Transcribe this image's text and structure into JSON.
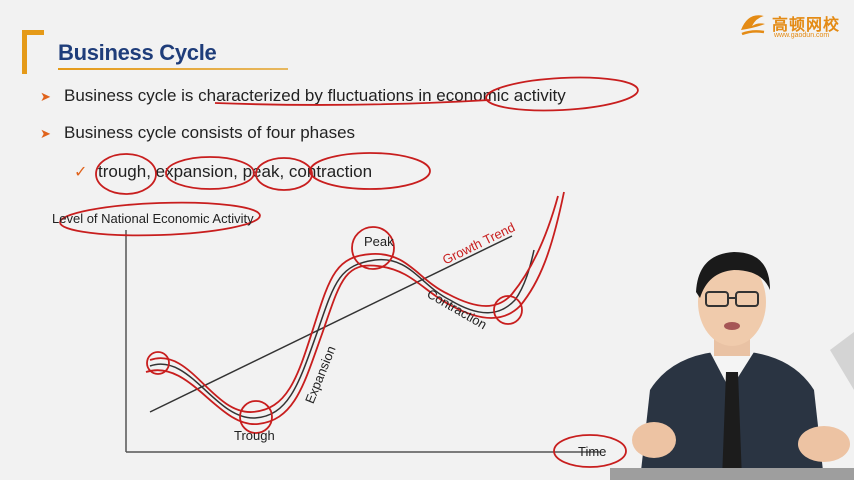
{
  "slide": {
    "title": "Business Cycle",
    "logo": {
      "text": "高顿网校",
      "url": "www.gaodun.com"
    },
    "bullets": [
      "Business cycle is characterized by fluctuations in economic activity",
      "Business cycle consists of four phases"
    ],
    "phases_line": "trough, expansion, peak, contraction"
  },
  "diagram": {
    "y_axis_label": "Level of National Economic Activity",
    "x_axis_label": "Time",
    "labels": {
      "peak": "Peak",
      "trough": "Trough",
      "expansion": "Expansion",
      "contraction": "Contraction",
      "growth_trend": "Growth Trend"
    },
    "colors": {
      "annotation": "#c81e1e",
      "growth_trend_text": "#c81e1e",
      "curve": "#333333"
    }
  },
  "icons": [
    "logo-mark-icon",
    "arrow-bullet-icon",
    "checkmark-icon"
  ]
}
